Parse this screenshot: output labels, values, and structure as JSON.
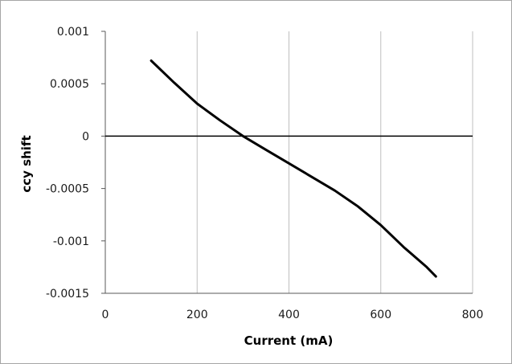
{
  "chart_data": {
    "type": "line",
    "title": "",
    "xlabel": "Current (mA)",
    "ylabel": "ccy shift",
    "xlim": [
      0,
      800
    ],
    "ylim": [
      -0.0015,
      0.001
    ],
    "x_ticks": [
      0,
      200,
      400,
      600,
      800
    ],
    "y_ticks": [
      0.001,
      0.0005,
      0,
      -0.0005,
      -0.001,
      -0.0015
    ],
    "x_tick_labels": [
      "0",
      "200",
      "400",
      "600",
      "800"
    ],
    "y_tick_labels": [
      "0.001",
      "0.0005",
      "0",
      "-0.0005",
      "-0.001",
      "-0.0015"
    ],
    "grid": "vertical",
    "legend": "none",
    "series": [
      {
        "color": "#000000",
        "x": [
          100,
          150,
          200,
          250,
          300,
          350,
          400,
          450,
          500,
          550,
          600,
          650,
          700,
          720
        ],
        "y": [
          0.00072,
          0.00051,
          0.00031,
          0.00015,
          0.0,
          -0.00013,
          -0.00026,
          -0.00039,
          -0.00052,
          -0.00067,
          -0.00085,
          -0.00106,
          -0.00125,
          -0.00134
        ]
      }
    ]
  }
}
